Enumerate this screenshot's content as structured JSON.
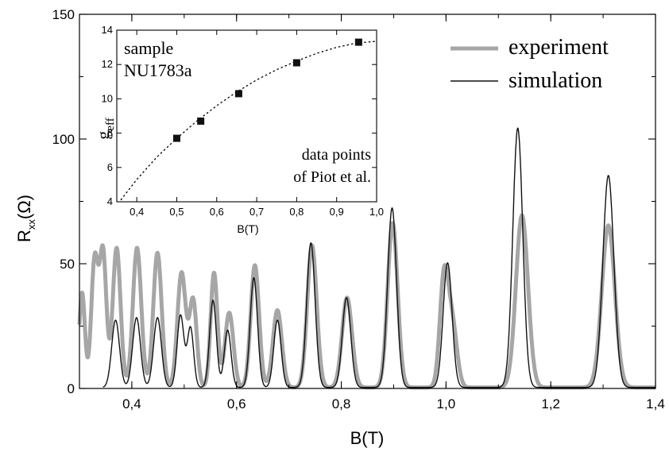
{
  "chart_data": [
    {
      "type": "line",
      "xlabel": "B(T)",
      "ylabel_main": "R",
      "ylabel_sub": "xx",
      "ylabel_tail": "(Ω)",
      "xlim": [
        0.3,
        1.4
      ],
      "ylim": [
        0,
        150
      ],
      "x_ticks": [
        "0,4",
        "0,6",
        "0,8",
        "1,0",
        "1,2",
        "1,4"
      ],
      "x_tick_values": [
        0.4,
        0.6,
        0.8,
        1.0,
        1.2,
        1.4
      ],
      "y_ticks": [
        "0",
        "50",
        "100",
        "150"
      ],
      "y_tick_values": [
        0,
        50,
        100,
        150
      ],
      "legend_position": "top-right",
      "colors": {
        "experiment": "#a6a6a6",
        "simulation": "#111111"
      },
      "series": [
        {
          "name": "experiment",
          "peaks": [
            {
              "x": 0.305,
              "h": 38,
              "w": 0.0055
            },
            {
              "x": 0.329,
              "h": 51,
              "w": 0.0065
            },
            {
              "x": 0.345,
              "h": 54,
              "w": 0.0065
            },
            {
              "x": 0.371,
              "h": 56,
              "w": 0.0075
            },
            {
              "x": 0.41,
              "h": 56,
              "w": 0.008
            },
            {
              "x": 0.449,
              "h": 54,
              "w": 0.008
            },
            {
              "x": 0.495,
              "h": 46,
              "w": 0.008
            },
            {
              "x": 0.517,
              "h": 35,
              "w": 0.007
            },
            {
              "x": 0.557,
              "h": 46,
              "w": 0.0065
            },
            {
              "x": 0.586,
              "h": 30,
              "w": 0.008
            },
            {
              "x": 0.635,
              "h": 49,
              "w": 0.008
            },
            {
              "x": 0.678,
              "h": 31,
              "w": 0.0085
            },
            {
              "x": 0.744,
              "h": 57,
              "w": 0.009
            },
            {
              "x": 0.811,
              "h": 36,
              "w": 0.0095
            },
            {
              "x": 0.898,
              "h": 66,
              "w": 0.0095
            },
            {
              "x": 0.996,
              "h": 43,
              "w": 0.008
            },
            {
              "x": 1.012,
              "h": 25,
              "w": 0.009
            },
            {
              "x": 1.145,
              "h": 69,
              "w": 0.0115
            },
            {
              "x": 1.31,
              "h": 65,
              "w": 0.0125
            }
          ]
        },
        {
          "name": "simulation",
          "peaks": [
            {
              "x": 0.369,
              "h": 27,
              "w": 0.0075
            },
            {
              "x": 0.409,
              "h": 28,
              "w": 0.0075
            },
            {
              "x": 0.449,
              "h": 28,
              "w": 0.0075
            },
            {
              "x": 0.493,
              "h": 29,
              "w": 0.0065
            },
            {
              "x": 0.512,
              "h": 24,
              "w": 0.006
            },
            {
              "x": 0.555,
              "h": 35,
              "w": 0.0065
            },
            {
              "x": 0.583,
              "h": 23,
              "w": 0.0065
            },
            {
              "x": 0.633,
              "h": 44,
              "w": 0.007
            },
            {
              "x": 0.678,
              "h": 27,
              "w": 0.007
            },
            {
              "x": 0.742,
              "h": 58,
              "w": 0.008
            },
            {
              "x": 0.81,
              "h": 36,
              "w": 0.008
            },
            {
              "x": 0.897,
              "h": 72,
              "w": 0.0085
            },
            {
              "x": 1.003,
              "h": 50,
              "w": 0.0085
            },
            {
              "x": 1.137,
              "h": 104,
              "w": 0.0095
            },
            {
              "x": 1.31,
              "h": 85,
              "w": 0.0105
            }
          ]
        }
      ]
    },
    {
      "type": "scatter",
      "xlabel": "B(T)",
      "ylabel_main": "g",
      "ylabel_sub": "eff",
      "xlim": [
        0.35,
        1.0
      ],
      "ylim": [
        4,
        14
      ],
      "x_ticks": [
        "0,4",
        "0,5",
        "0,6",
        "0,7",
        "0,8",
        "0,9",
        "1,0"
      ],
      "x_tick_values": [
        0.4,
        0.5,
        0.6,
        0.7,
        0.8,
        0.9,
        1.0
      ],
      "y_ticks": [
        "4",
        "6",
        "8",
        "10",
        "12",
        "14"
      ],
      "y_tick_values": [
        4,
        6,
        8,
        10,
        12,
        14
      ],
      "annotations": {
        "sample_line1": "sample",
        "sample_line2": "NU1783a",
        "note_line1": "data points",
        "note_line2": "of Piot et al."
      },
      "points": {
        "x": [
          0.5,
          0.56,
          0.655,
          0.8,
          0.955
        ],
        "y": [
          7.7,
          8.7,
          10.3,
          12.1,
          13.3
        ]
      },
      "fit_curve": {
        "x": [
          0.36,
          0.4,
          0.45,
          0.5,
          0.55,
          0.6,
          0.65,
          0.7,
          0.75,
          0.8,
          0.85,
          0.9,
          0.95,
          1.0
        ],
        "y": [
          4.1,
          5.3,
          6.6,
          7.7,
          8.7,
          9.6,
          10.4,
          11.1,
          11.7,
          12.2,
          12.65,
          13.0,
          13.25,
          13.35
        ]
      }
    }
  ]
}
